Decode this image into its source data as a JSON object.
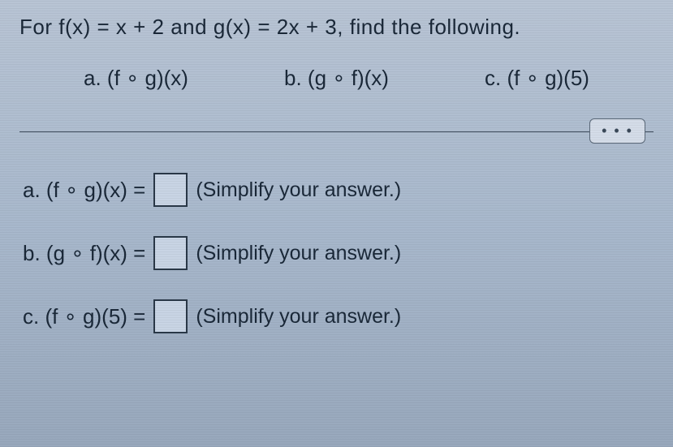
{
  "question": {
    "header": "For f(x) = x + 2 and g(x) = 2x + 3, find the following.",
    "parts": {
      "a": "a. (f ∘ g)(x)",
      "b": "b. (g ∘ f)(x)",
      "c": "c. (f ∘ g)(5)"
    }
  },
  "divider": {
    "ellipsis": "• • •"
  },
  "answers": {
    "a": {
      "label": "a. (f ∘ g)(x) =",
      "value": "",
      "hint": "(Simplify your answer.)"
    },
    "b": {
      "label": "b. (g ∘ f)(x) =",
      "value": "",
      "hint": "(Simplify your answer.)"
    },
    "c": {
      "label": "c. (f ∘ g)(5) =",
      "value": "",
      "hint": "(Simplify your answer.)"
    }
  },
  "colors": {
    "text": "#1a2838",
    "border": "#2a3848",
    "badge_bg": "#d4dce8",
    "input_bg": "#c8d4e4"
  }
}
